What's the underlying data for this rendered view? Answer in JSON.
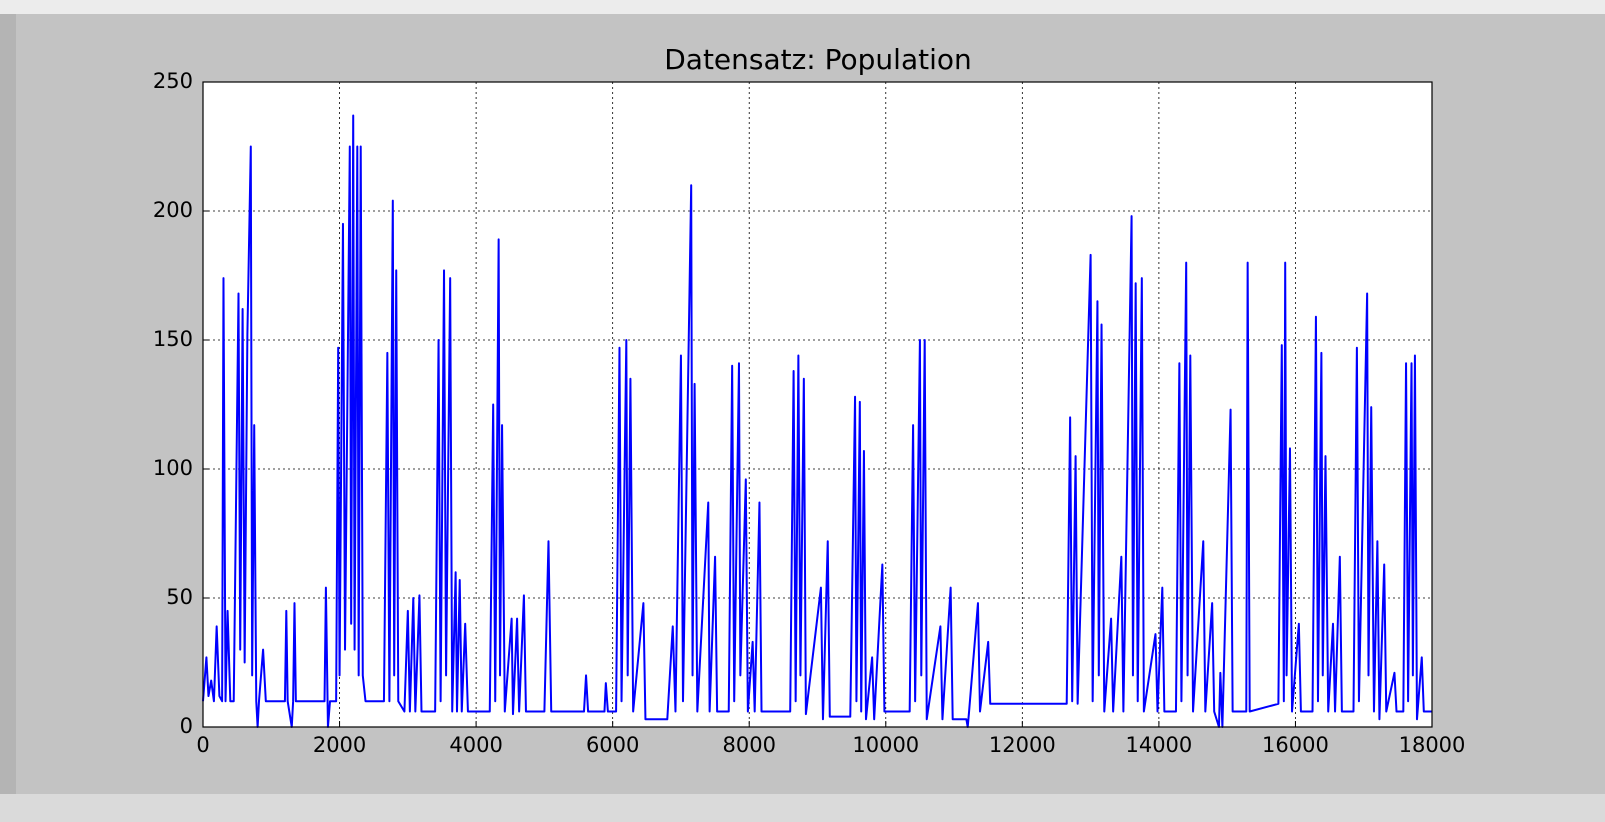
{
  "chart_data": {
    "type": "line",
    "title": "Datensatz: Population",
    "color": "#0000ff",
    "grid": true,
    "xlim": [
      0,
      18000
    ],
    "xticks": [
      0,
      2000,
      4000,
      6000,
      8000,
      10000,
      12000,
      14000,
      16000,
      18000
    ],
    "ylim": [
      0,
      250
    ],
    "yticks": [
      0,
      50,
      100,
      150,
      200,
      250
    ],
    "x": [
      0,
      50,
      80,
      120,
      160,
      200,
      240,
      280,
      300,
      330,
      360,
      400,
      450,
      520,
      545,
      580,
      610,
      650,
      700,
      720,
      750,
      780,
      800,
      820,
      880,
      920,
      1200,
      1220,
      1240,
      1300,
      1320,
      1340,
      1360,
      1780,
      1800,
      1830,
      1860,
      1950,
      1980,
      2000,
      2050,
      2080,
      2150,
      2170,
      2200,
      2220,
      2260,
      2280,
      2310,
      2340,
      2380,
      2650,
      2700,
      2730,
      2780,
      2800,
      2830,
      2860,
      2950,
      3000,
      3030,
      3080,
      3110,
      3170,
      3200,
      3400,
      3450,
      3480,
      3530,
      3560,
      3620,
      3650,
      3700,
      3720,
      3760,
      3790,
      3840,
      3880,
      4200,
      4250,
      4280,
      4330,
      4350,
      4380,
      4420,
      4520,
      4540,
      4600,
      4630,
      4700,
      4730,
      5000,
      5060,
      5100,
      5580,
      5610,
      5640,
      5880,
      5900,
      5930,
      6050,
      6100,
      6130,
      6200,
      6220,
      6260,
      6300,
      6450,
      6480,
      6800,
      6880,
      6920,
      7000,
      7030,
      7150,
      7170,
      7200,
      7240,
      7400,
      7420,
      7500,
      7530,
      7700,
      7750,
      7780,
      7850,
      7870,
      7950,
      7980,
      8050,
      8080,
      8150,
      8180,
      8600,
      8650,
      8680,
      8720,
      8750,
      8800,
      8830,
      9050,
      9080,
      9150,
      9180,
      9480,
      9550,
      9570,
      9620,
      9640,
      9680,
      9710,
      9800,
      9830,
      9950,
      9980,
      10350,
      10400,
      10430,
      10500,
      10520,
      10570,
      10600,
      10800,
      10830,
      10950,
      10980,
      11180,
      11200,
      11220,
      11350,
      11380,
      11500,
      11530,
      12650,
      12700,
      12730,
      12780,
      12810,
      13000,
      13030,
      13100,
      13120,
      13160,
      13200,
      13300,
      13330,
      13450,
      13480,
      13600,
      13620,
      13660,
      13690,
      13750,
      13780,
      13950,
      13980,
      14050,
      14080,
      14250,
      14300,
      14330,
      14400,
      14420,
      14460,
      14500,
      14650,
      14680,
      14780,
      14810,
      14880,
      14900,
      14930,
      15050,
      15080,
      15280,
      15300,
      15330,
      15750,
      15800,
      15830,
      15850,
      15870,
      15920,
      15950,
      16050,
      16080,
      16250,
      16300,
      16330,
      16380,
      16400,
      16440,
      16480,
      16550,
      16580,
      16650,
      16680,
      16850,
      16900,
      16930,
      17050,
      17070,
      17110,
      17150,
      17200,
      17230,
      17300,
      17330,
      17450,
      17480,
      17580,
      17620,
      17650,
      17700,
      17720,
      17750,
      17780,
      17850,
      17880,
      18000
    ],
    "values": [
      10,
      27,
      12,
      18,
      10,
      39,
      12,
      10,
      174,
      10,
      45,
      10,
      10,
      168,
      30,
      162,
      25,
      152,
      225,
      20,
      117,
      10,
      0,
      10,
      30,
      10,
      10,
      45,
      10,
      0,
      10,
      48,
      10,
      10,
      54,
      0,
      10,
      10,
      147,
      20,
      195,
      30,
      225,
      40,
      237,
      30,
      225,
      20,
      225,
      20,
      10,
      10,
      145,
      10,
      204,
      20,
      177,
      10,
      6,
      45,
      6,
      50,
      6,
      51,
      6,
      6,
      150,
      10,
      177,
      20,
      174,
      6,
      60,
      6,
      57,
      6,
      40,
      6,
      6,
      125,
      10,
      189,
      20,
      117,
      6,
      42,
      5,
      42,
      6,
      51,
      6,
      6,
      72,
      6,
      6,
      20,
      6,
      6,
      17,
      6,
      6,
      147,
      10,
      150,
      20,
      135,
      6,
      48,
      3,
      3,
      39,
      6,
      144,
      10,
      210,
      20,
      133,
      6,
      87,
      6,
      66,
      6,
      6,
      140,
      10,
      141,
      20,
      96,
      6,
      33,
      6,
      87,
      6,
      6,
      138,
      10,
      144,
      20,
      135,
      5,
      54,
      3,
      72,
      4,
      4,
      128,
      10,
      126,
      6,
      107,
      3,
      27,
      3,
      63,
      6,
      6,
      117,
      10,
      150,
      20,
      150,
      3,
      39,
      3,
      54,
      3,
      3,
      0,
      6,
      48,
      6,
      33,
      9,
      9,
      120,
      10,
      105,
      9,
      183,
      10,
      165,
      20,
      156,
      6,
      42,
      6,
      66,
      6,
      198,
      20,
      172,
      10,
      174,
      6,
      36,
      6,
      54,
      6,
      6,
      141,
      10,
      180,
      20,
      144,
      6,
      72,
      6,
      48,
      6,
      0,
      21,
      0,
      123,
      6,
      6,
      180,
      6,
      9,
      148,
      10,
      180,
      20,
      108,
      6,
      40,
      6,
      6,
      159,
      10,
      145,
      20,
      105,
      6,
      40,
      6,
      66,
      6,
      6,
      147,
      10,
      168,
      20,
      124,
      6,
      72,
      3,
      63,
      6,
      21,
      6,
      6,
      141,
      10,
      141,
      20,
      144,
      3,
      27,
      6,
      6
    ]
  }
}
